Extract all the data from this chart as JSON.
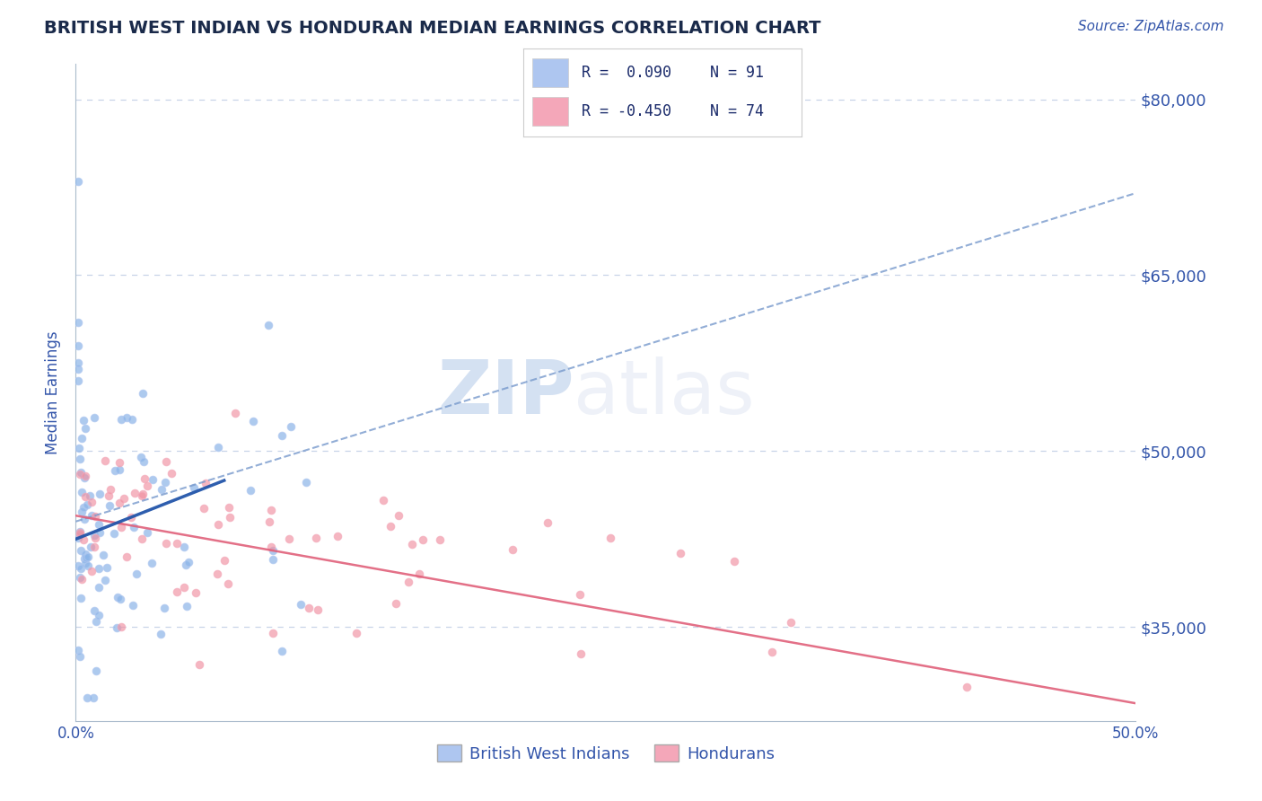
{
  "title": "BRITISH WEST INDIAN VS HONDURAN MEDIAN EARNINGS CORRELATION CHART",
  "source": "Source: ZipAtlas.com",
  "ylabel": "Median Earnings",
  "xlim": [
    0.0,
    0.5
  ],
  "ylim": [
    27000,
    83000
  ],
  "yticks": [
    35000,
    50000,
    65000,
    80000
  ],
  "xtick_labels_ends": [
    "0.0%",
    "50.0%"
  ],
  "ytick_labels": [
    "$35,000",
    "$50,000",
    "$65,000",
    "$80,000"
  ],
  "legend_entries": [
    {
      "label": "British West Indians",
      "color": "#aec6f0",
      "marker_color": "#8ab4e8",
      "R": 0.09,
      "N": 91
    },
    {
      "label": "Hondurans",
      "color": "#f4a7b9",
      "marker_color": "#f090a0",
      "R": -0.45,
      "N": 74
    }
  ],
  "background_color": "#ffffff",
  "grid_color": "#c8d4e8",
  "axis_label_color": "#3355aa",
  "tick_color": "#3355aa",
  "watermark_text": "ZIPatlas",
  "watermark_color": "#c8d8f0",
  "bwi_trend_solid_color": "#2255aa",
  "bwi_trend_dash_color": "#7799cc",
  "honduran_trend_color": "#e0607a",
  "bwi_seed": 42,
  "honduran_seed": 99,
  "title_fontsize": 14,
  "source_fontsize": 11,
  "tick_fontsize": 12,
  "ylabel_fontsize": 12,
  "watermark_fontsize": 60,
  "legend_fontsize": 12,
  "dot_size": 38
}
